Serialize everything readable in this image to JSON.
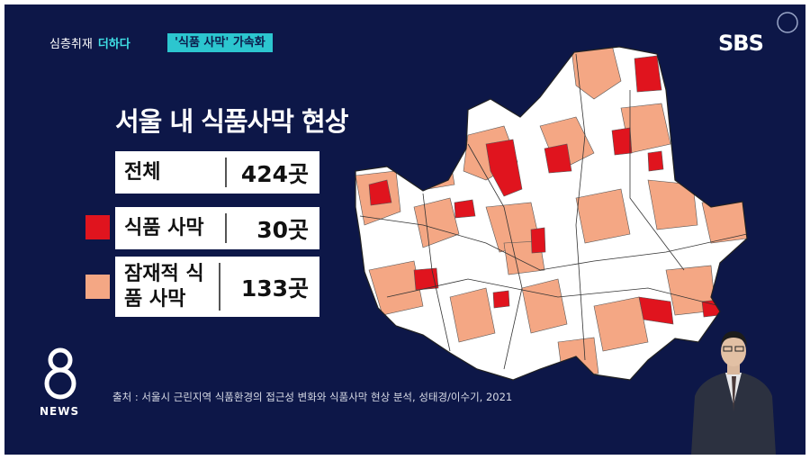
{
  "header": {
    "program": "심층취재",
    "brand": "더하다",
    "tag": "'식품 사막' 가속화",
    "logo": "SBS"
  },
  "title": "서울 내 식품사막 현상",
  "table": {
    "rows": [
      {
        "label": "전체",
        "value": "424곳"
      },
      {
        "label": "식품 사막",
        "value": "30곳"
      },
      {
        "label": "잠재적 식품 사막",
        "value": "133곳"
      }
    ]
  },
  "source": "출처 : 서울시 근린지역 식품환경의 접근성 변화와 식품사막 현상 분석, 성태경/이수기, 2021",
  "footer": {
    "logo": "NEWS"
  }
}
